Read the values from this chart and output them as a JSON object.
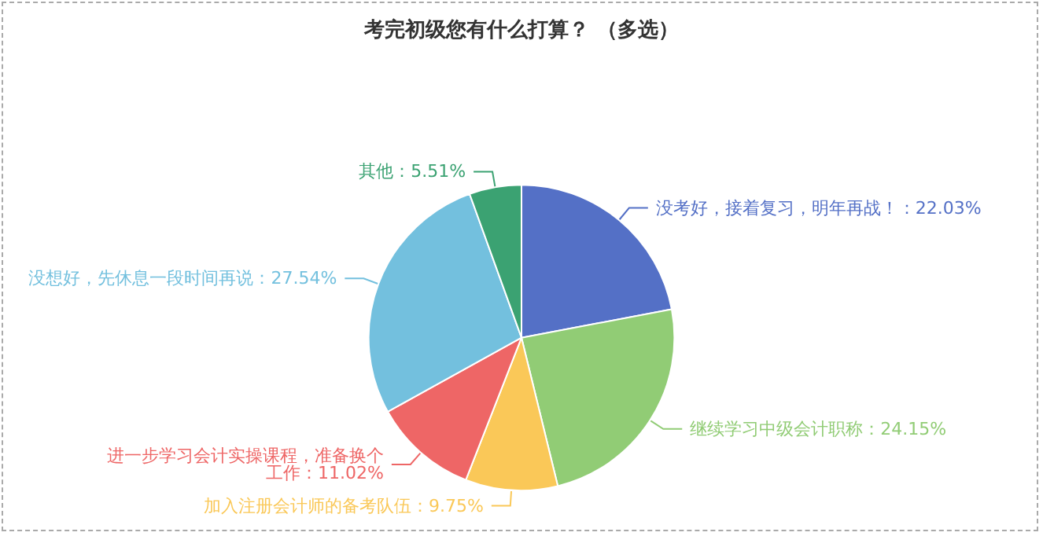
{
  "chart_data": {
    "type": "pie",
    "title": "考完初级您有什么打算？ （多选）",
    "categories": [
      "没考好，接着复习，明年再战！",
      "继续学习中级会计职称",
      "加入注册会计师的备考队伍",
      "进一步学习会计实操课程，准备换个工作",
      "没想好，先休息一段时间再说",
      "其他"
    ],
    "values": [
      22.03,
      24.15,
      9.75,
      11.02,
      27.54,
      5.51
    ],
    "value_labels": [
      "22.03%",
      "24.15%",
      "9.75%",
      "11.02%",
      "27.54%",
      "5.51%"
    ],
    "colors": [
      "#5470c6",
      "#91cc75",
      "#fac858",
      "#ee6666",
      "#73c0de",
      "#3ba272"
    ],
    "legend": false
  }
}
